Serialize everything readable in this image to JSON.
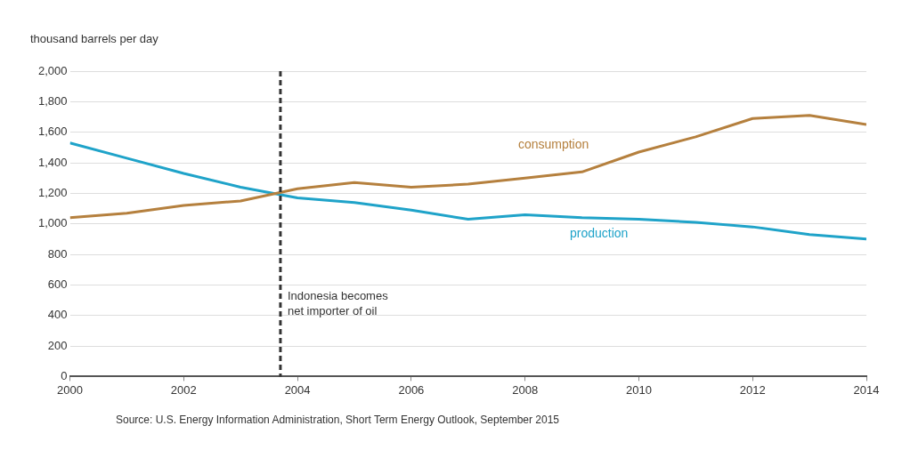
{
  "chart_data": {
    "type": "line",
    "ylabel": "thousand barrels per day",
    "x": [
      2000,
      2001,
      2002,
      2003,
      2004,
      2005,
      2006,
      2007,
      2008,
      2009,
      2010,
      2011,
      2012,
      2013,
      2014
    ],
    "series": [
      {
        "name": "consumption",
        "color": "#b5803e",
        "values": [
          1040,
          1070,
          1120,
          1150,
          1230,
          1270,
          1240,
          1260,
          1300,
          1340,
          1470,
          1570,
          1690,
          1710,
          1650
        ]
      },
      {
        "name": "production",
        "color": "#1fa3c9",
        "values": [
          1530,
          1430,
          1330,
          1240,
          1170,
          1140,
          1090,
          1030,
          1060,
          1040,
          1030,
          1010,
          980,
          930,
          900
        ]
      }
    ],
    "xlim": [
      2000,
      2014
    ],
    "xticks": [
      2000,
      2002,
      2004,
      2006,
      2008,
      2010,
      2012,
      2014
    ],
    "ylim": [
      0,
      2000
    ],
    "yticks": [
      0,
      200,
      400,
      600,
      800,
      {
        "value": 1000,
        "label": "1,000"
      },
      {
        "value": 1200,
        "label": "1,200"
      },
      {
        "value": 1400,
        "label": "1,400"
      },
      {
        "value": 1600,
        "label": "1,600"
      },
      {
        "value": 1800,
        "label": "1,800"
      },
      {
        "value": 2000,
        "label": "2,000"
      }
    ],
    "ref_lines": [
      {
        "axis": "x",
        "value": 2003.7,
        "label": "Indonesia becomes\nnet importer of oil",
        "color": "#333333",
        "line_style": "dashed"
      }
    ],
    "annotations": [
      "Source: U.S. Energy Information Administration, Short Term Energy Outlook, September 2015"
    ],
    "grid": "y",
    "legend": false,
    "marker": "none",
    "line_style": "solid"
  }
}
